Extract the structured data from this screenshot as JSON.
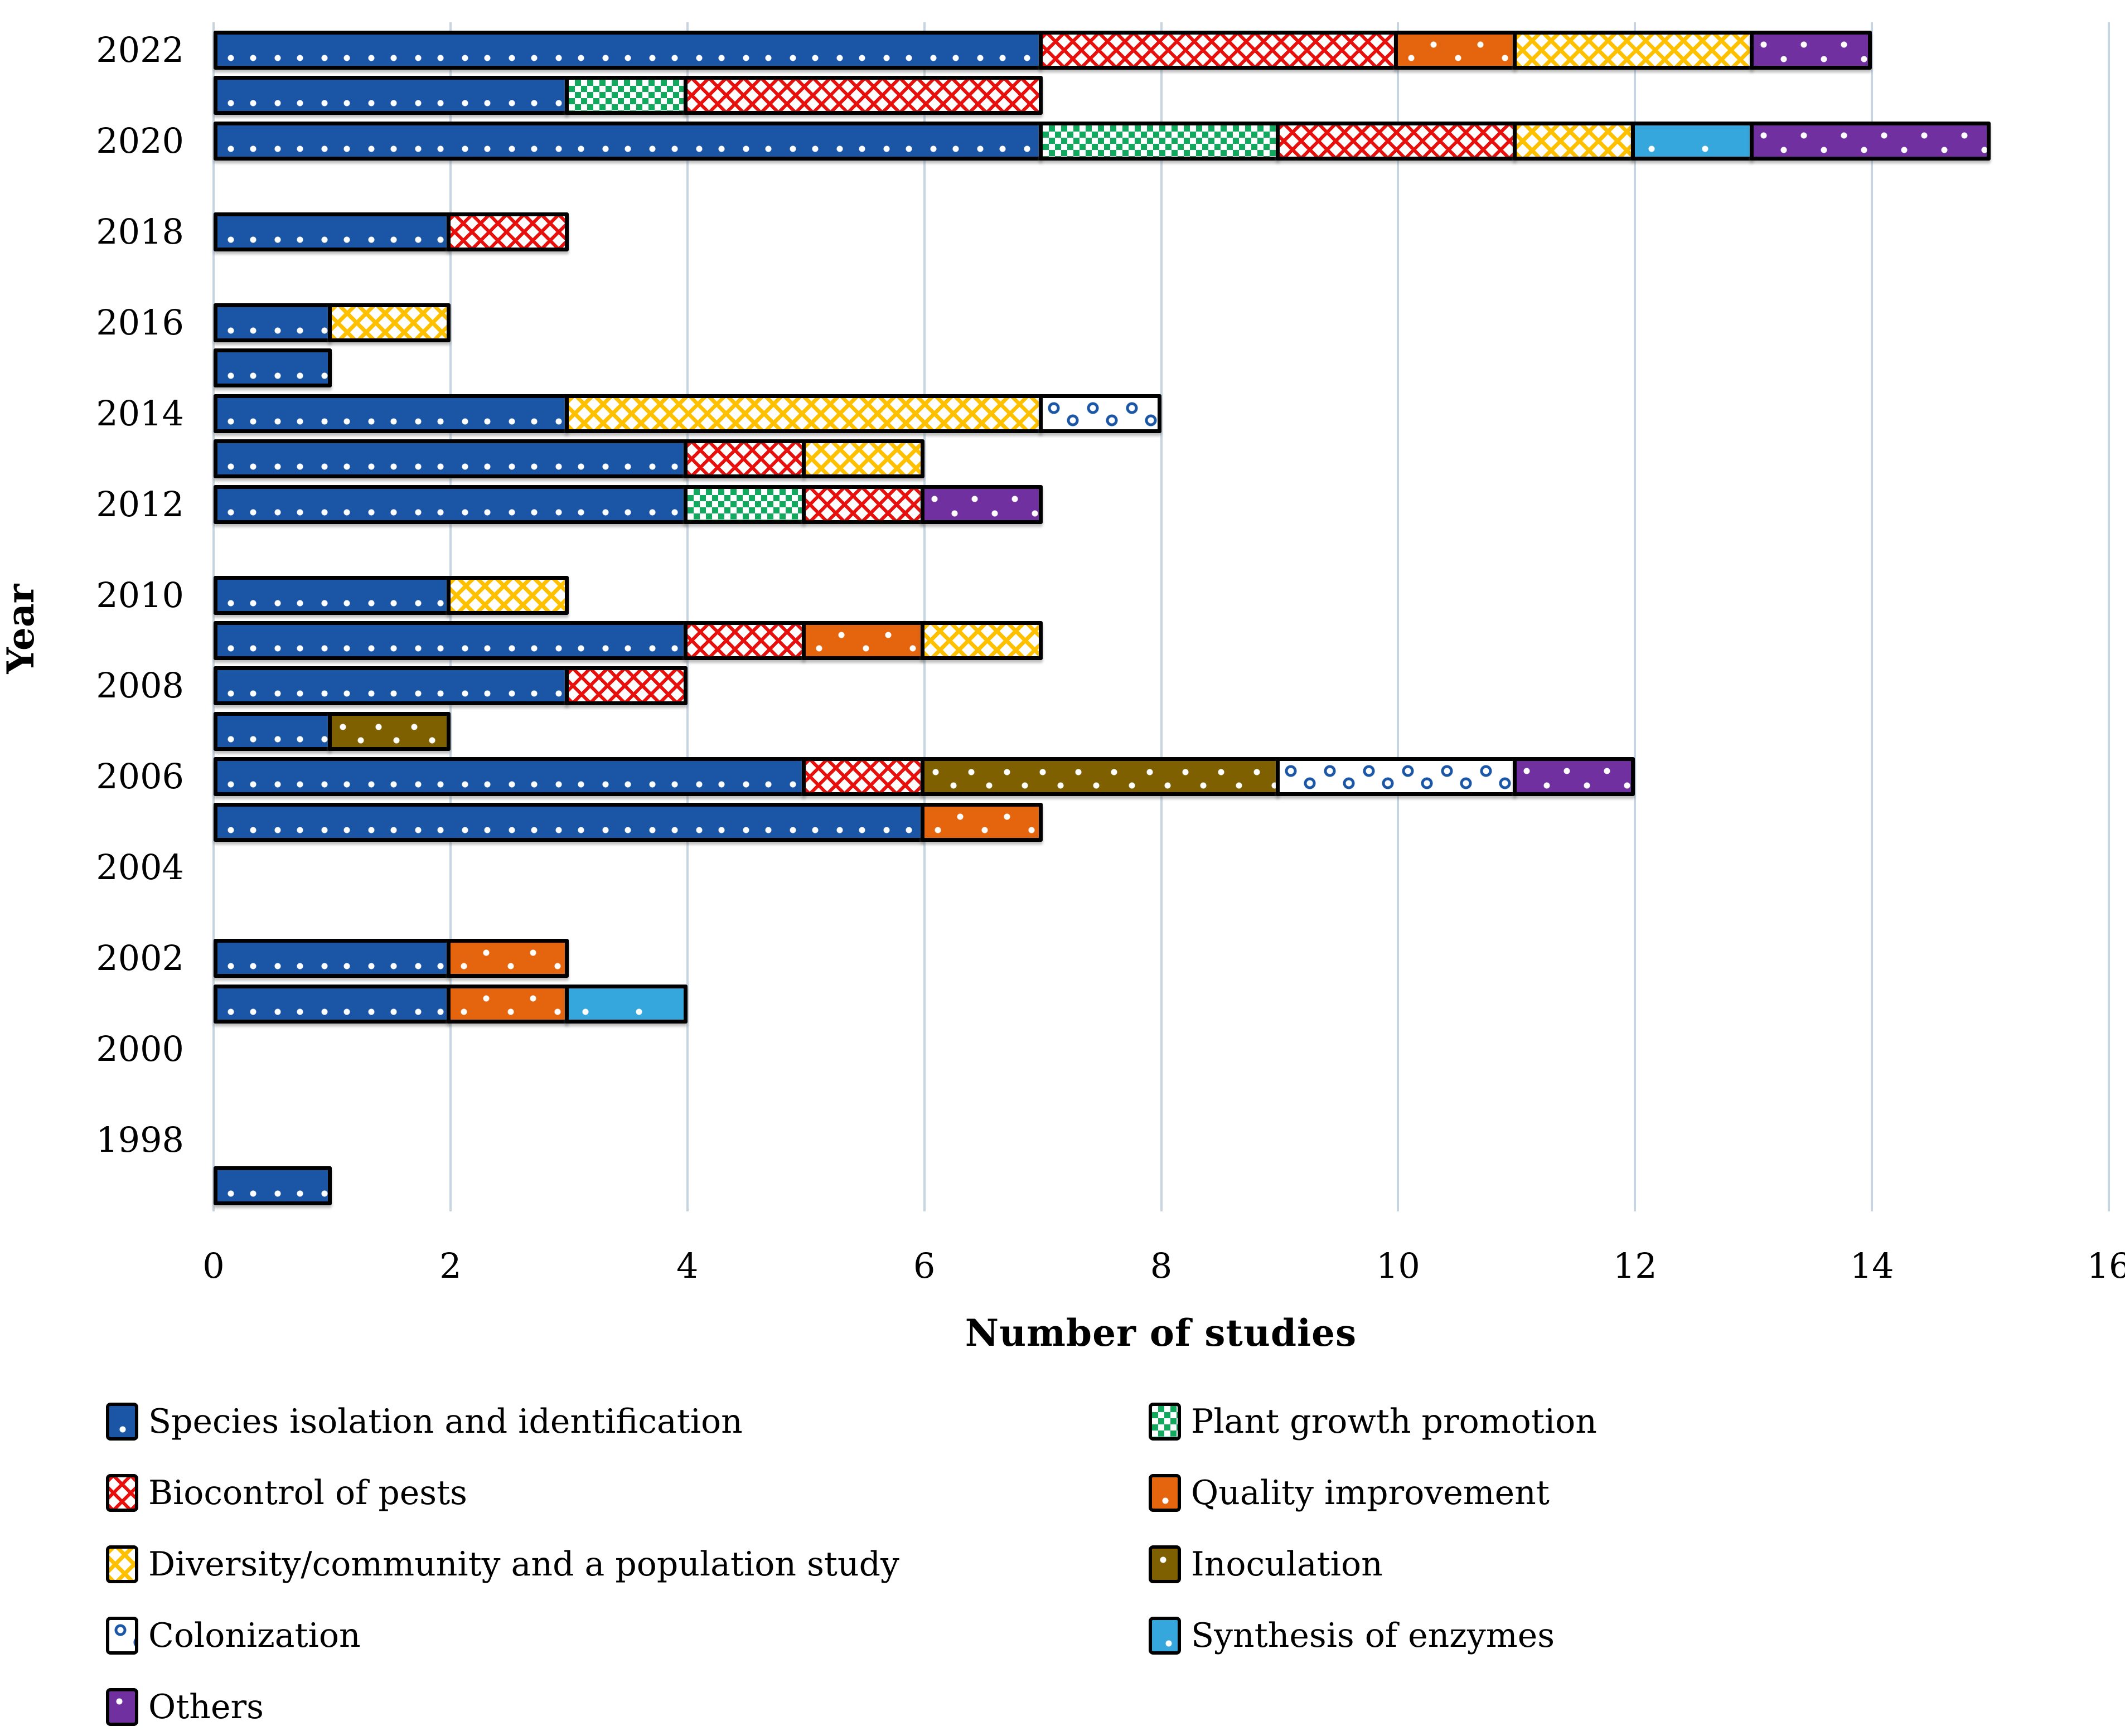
{
  "figure": {
    "background": "#FFFFFF"
  },
  "chart_data": {
    "type": "bar",
    "stacked": true,
    "orientation": "horizontal",
    "title": "",
    "xlabel": "Number of studies",
    "ylabel": "Year",
    "xlim": [
      0,
      16
    ],
    "xticks": [
      "0",
      "2",
      "4",
      "6",
      "8",
      "10",
      "12",
      "14",
      "16"
    ],
    "grid": "vertical-gridlines-only",
    "gridline_color": "#C7D5E2",
    "legend_position": "bottom, two columns",
    "categories": [
      2022,
      2021,
      2020,
      2019,
      2018,
      2017,
      2016,
      2015,
      2014,
      2013,
      2012,
      2011,
      2010,
      2009,
      2008,
      2007,
      2006,
      2005,
      2004,
      2003,
      2002,
      2001,
      2000,
      1999,
      1998,
      1997
    ],
    "ytick_labels": [
      "2022",
      "2020",
      "2018",
      "2016",
      "2014",
      "2012",
      "2010",
      "2008",
      "2006",
      "2004",
      "2002",
      "2000",
      "1998"
    ],
    "series": [
      {
        "name": "Species isolation and identification",
        "key": "species",
        "color": "#1A56A5",
        "pattern": "solid blue with white dots",
        "values": [
          7,
          3,
          7,
          0,
          2,
          0,
          1,
          1,
          3,
          4,
          4,
          0,
          2,
          4,
          3,
          1,
          5,
          6,
          0,
          0,
          2,
          2,
          0,
          0,
          0,
          1
        ]
      },
      {
        "name": "Plant growth promotion",
        "key": "plant_growth",
        "color": "#10A95E",
        "pattern": "green checker on white",
        "values": [
          0,
          1,
          2,
          0,
          0,
          0,
          0,
          0,
          0,
          0,
          1,
          0,
          0,
          0,
          0,
          0,
          0,
          0,
          0,
          0,
          0,
          0,
          0,
          0,
          0,
          0
        ]
      },
      {
        "name": "Biocontrol of pests",
        "key": "biocontrol",
        "color": "#E8100C",
        "pattern": "red zigzag on white",
        "values": [
          3,
          3,
          2,
          0,
          1,
          0,
          0,
          0,
          0,
          1,
          1,
          0,
          0,
          1,
          1,
          0,
          1,
          0,
          0,
          0,
          0,
          0,
          0,
          0,
          0,
          0
        ]
      },
      {
        "name": "Quality improvement",
        "key": "quality",
        "color": "#E4650E",
        "pattern": "solid orange with white dots",
        "values": [
          1,
          0,
          0,
          0,
          0,
          0,
          0,
          0,
          0,
          0,
          0,
          0,
          0,
          1,
          0,
          0,
          0,
          1,
          0,
          0,
          1,
          1,
          0,
          0,
          0,
          0
        ]
      },
      {
        "name": "Diversity/community and a population study",
        "key": "diversity",
        "color": "#FFC000",
        "pattern": "gold zigzag on white",
        "values": [
          2,
          0,
          1,
          0,
          0,
          0,
          1,
          0,
          4,
          1,
          0,
          0,
          1,
          1,
          0,
          0,
          0,
          0,
          0,
          0,
          0,
          0,
          0,
          0,
          0,
          0
        ]
      },
      {
        "name": "Inoculation",
        "key": "inoculation",
        "color": "#7F6000",
        "pattern": "dark yellow with white dots",
        "values": [
          0,
          0,
          0,
          0,
          0,
          0,
          0,
          0,
          0,
          0,
          0,
          0,
          0,
          0,
          0,
          1,
          3,
          0,
          0,
          0,
          0,
          0,
          0,
          0,
          0,
          0
        ]
      },
      {
        "name": "Colonization",
        "key": "colonization",
        "color": "#1A56A5",
        "pattern": "blue rings on white",
        "values": [
          0,
          0,
          0,
          0,
          0,
          0,
          0,
          0,
          1,
          0,
          0,
          0,
          0,
          0,
          0,
          0,
          2,
          0,
          0,
          0,
          0,
          0,
          0,
          0,
          0,
          0
        ]
      },
      {
        "name": "Synthesis of enzymes",
        "key": "synthesis",
        "color": "#35A7DD",
        "pattern": "light blue with white dots",
        "values": [
          0,
          0,
          1,
          0,
          0,
          0,
          0,
          0,
          0,
          0,
          0,
          0,
          0,
          0,
          0,
          0,
          0,
          0,
          0,
          0,
          0,
          1,
          0,
          0,
          0,
          0
        ]
      },
      {
        "name": "Others",
        "key": "others",
        "color": "#7030A0",
        "pattern": "purple with white dots",
        "values": [
          1,
          0,
          2,
          0,
          0,
          0,
          0,
          0,
          0,
          0,
          1,
          0,
          0,
          0,
          0,
          0,
          1,
          0,
          0,
          0,
          0,
          0,
          0,
          0,
          0,
          0
        ]
      }
    ]
  }
}
